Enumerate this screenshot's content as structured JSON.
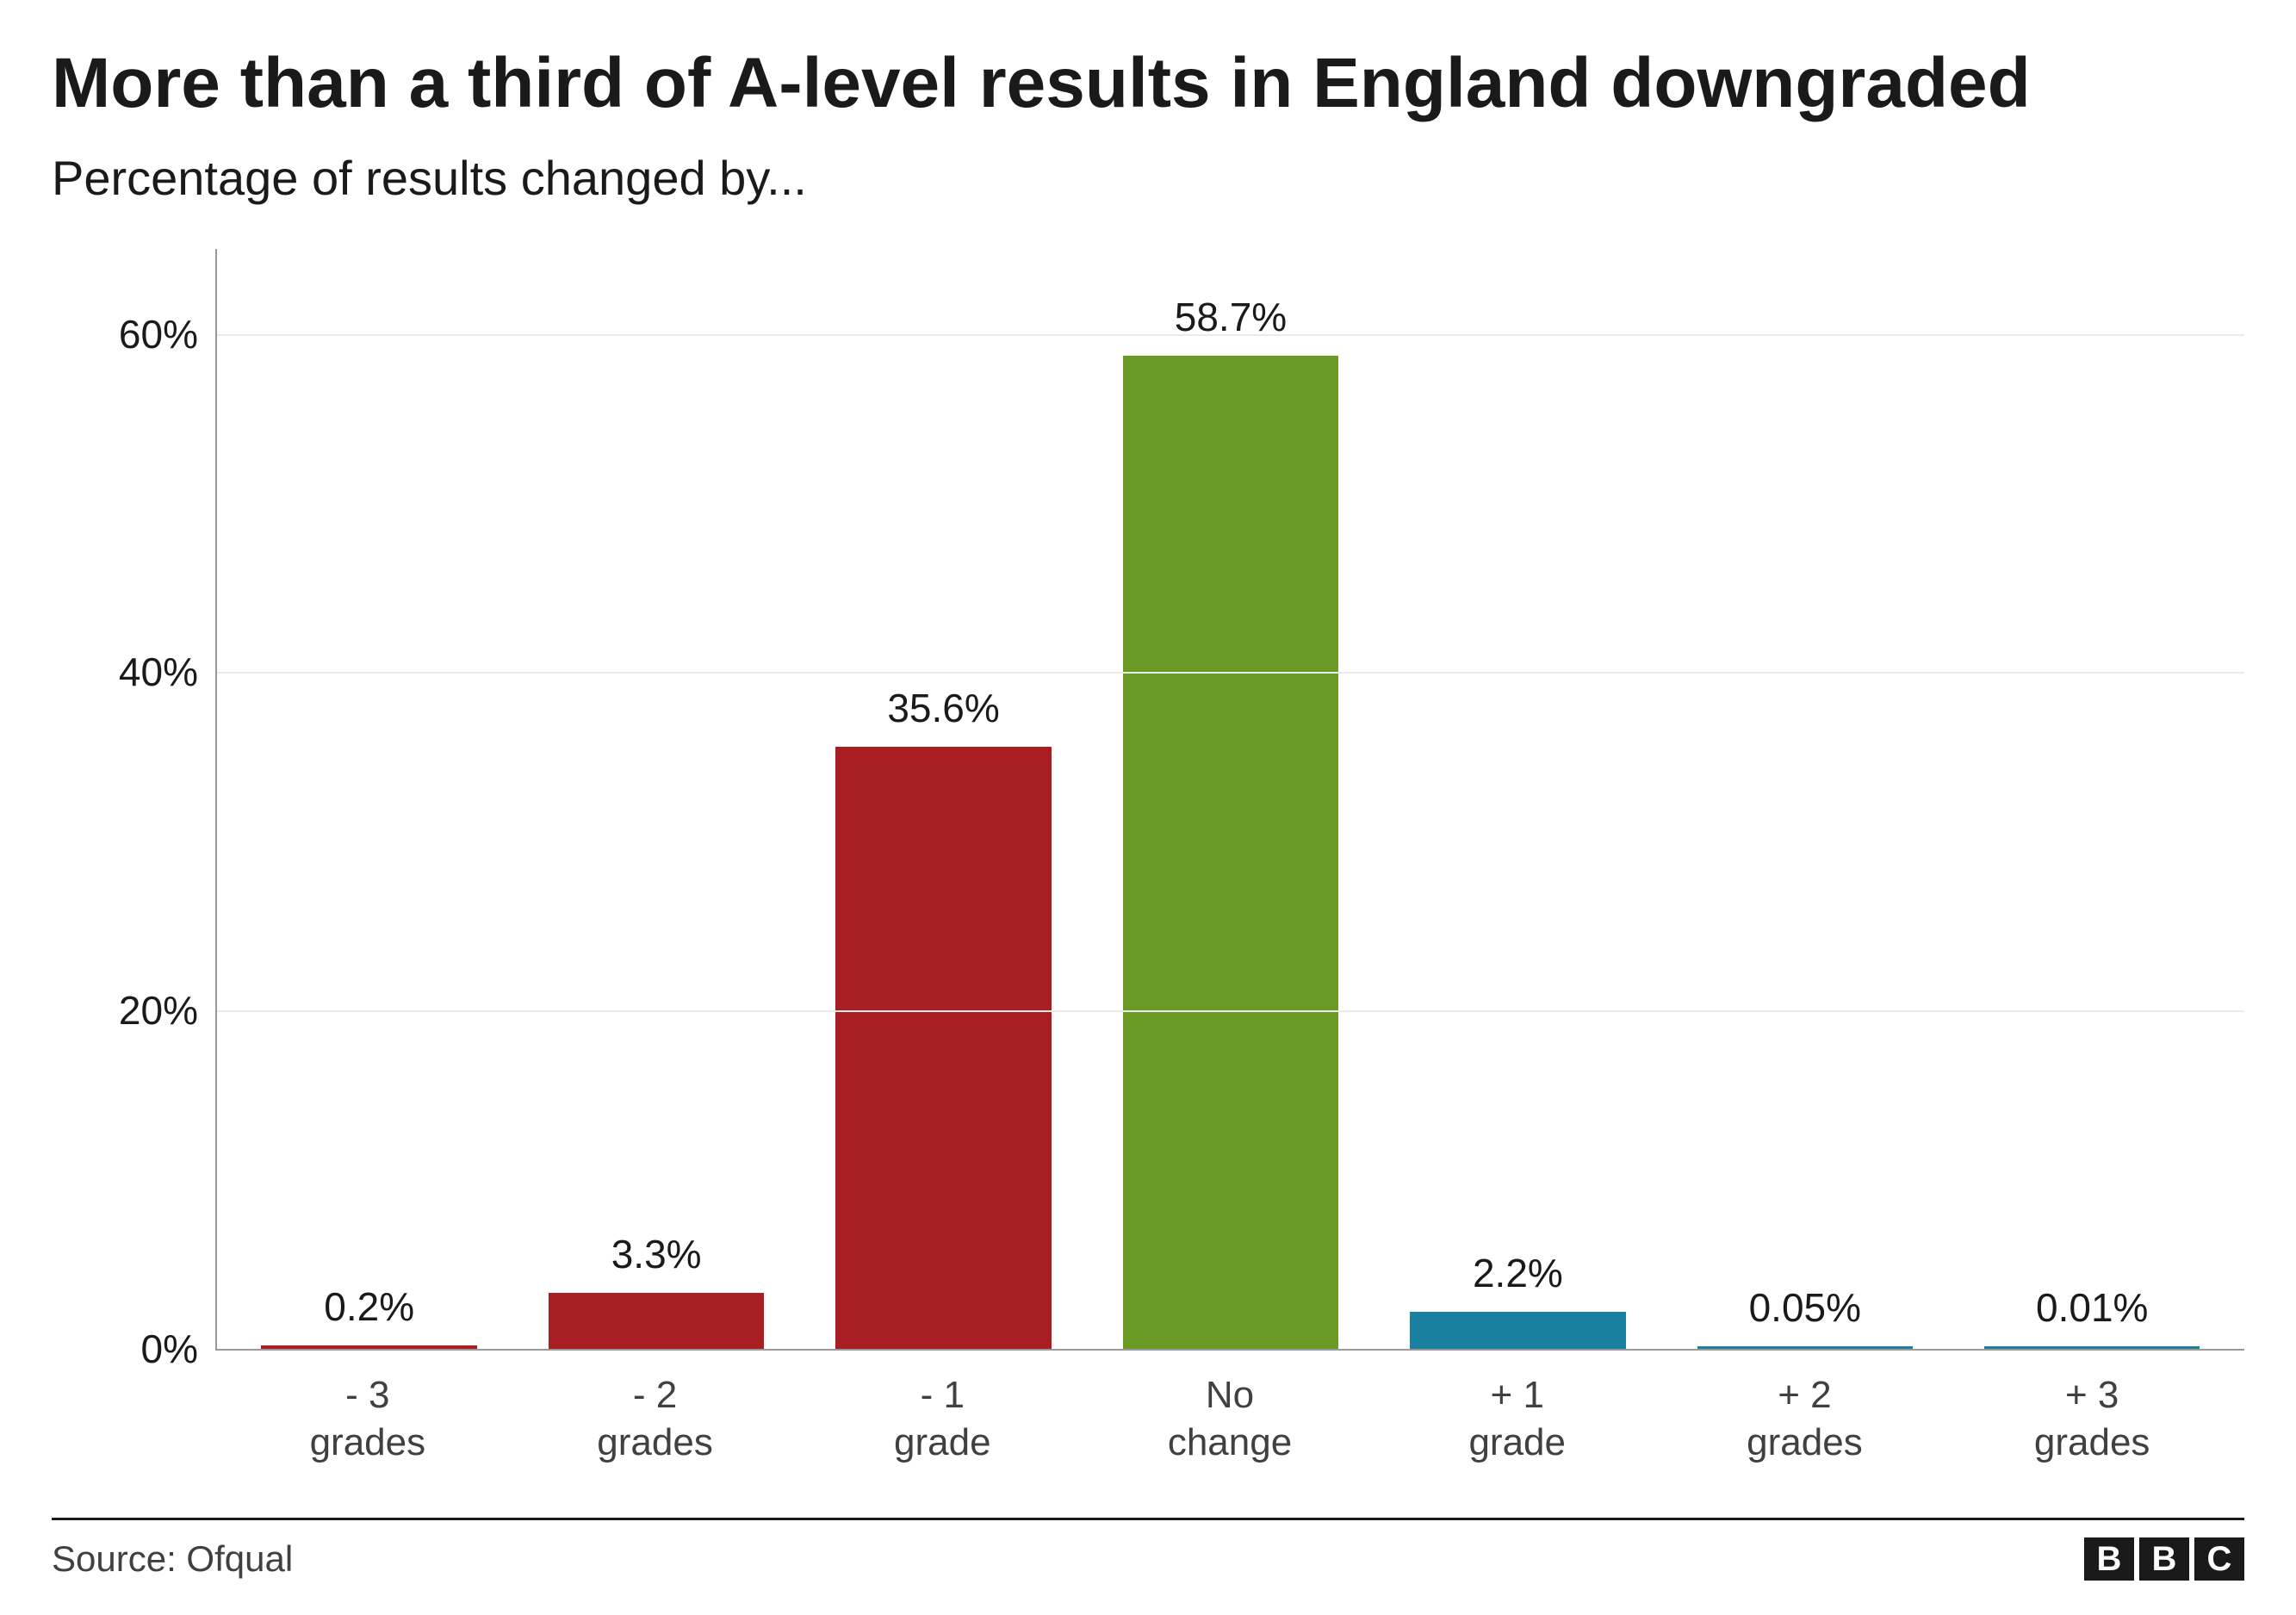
{
  "title": "More than a third of A-level results in England downgraded",
  "subtitle": "Percentage of results changed by...",
  "source_label": "Source: Ofqual",
  "logo": {
    "letters": [
      "B",
      "B",
      "C"
    ]
  },
  "chart": {
    "type": "bar",
    "title_fontsize": 82,
    "subtitle_fontsize": 56,
    "label_fontsize": 46,
    "tick_fontsize": 46,
    "xtick_fontsize": 44,
    "source_fontsize": 42,
    "background_color": "#ffffff",
    "grid_color": "#eaeaea",
    "axis_color": "#999999",
    "text_color": "#1a1a1a",
    "ylim": [
      0,
      65
    ],
    "yticks": [
      0,
      20,
      40,
      60
    ],
    "ytick_labels": [
      "0%",
      "20%",
      "40%",
      "60%"
    ],
    "bar_width": 0.82,
    "categories": [
      "- 3\ngrades",
      "- 2\ngrades",
      "- 1\ngrade",
      "No\nchange",
      "+ 1\ngrade",
      "+ 2\ngrades",
      "+ 3\ngrades"
    ],
    "values": [
      0.2,
      3.3,
      35.6,
      58.7,
      2.2,
      0.05,
      0.01
    ],
    "value_labels": [
      "0.2%",
      "3.3%",
      "35.6%",
      "58.7%",
      "2.2%",
      "0.05%",
      "0.01%"
    ],
    "bar_colors": [
      "#a91e22",
      "#a91e22",
      "#a91e22",
      "#6a9a23",
      "#1980a0",
      "#1980a0",
      "#1980a0"
    ]
  }
}
